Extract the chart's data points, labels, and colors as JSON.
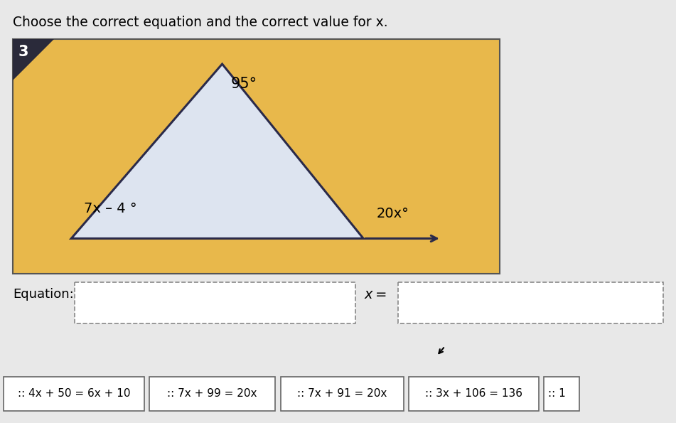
{
  "title": "Choose the correct equation and the correct value for x.",
  "problem_number": "3",
  "bg_color": "#E8B84B",
  "page_bg": "#E8E8E8",
  "white": "#FFFFFF",
  "black": "#000000",
  "triangle_color": "#2a2a4a",
  "angle_top_label": "95°",
  "angle_left_label": "7x – 4 °",
  "angle_right_label": "20x°",
  "equation_label": "Equation:",
  "x_eq_label": "x =",
  "options": [
    ":: 4x + 50 = 6x + 10",
    ":: 7x + 99 = 20x",
    ":: 7x + 91 = 20x",
    ":: 3x + 106 = 136"
  ],
  "partial_option": ":: 1"
}
